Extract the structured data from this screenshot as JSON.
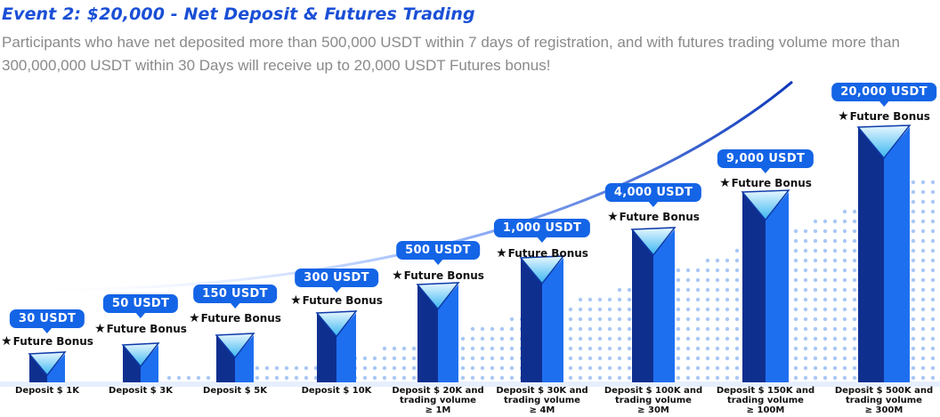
{
  "header": {
    "title": "Event 2: $20,000 - Net Deposit & Futures Trading",
    "description": "Participants who have net deposited more than 500,000 USDT within 7 days of registration, and with futures trading volume more than 300,000,000 USDT within 30 Days will receive up to 20,000 USDT Futures bonus!"
  },
  "colors": {
    "title": "#1a4fd6",
    "badge": "#1464e6",
    "bar_dark": "#0f2f8f",
    "bar_light": "#1e6ff0",
    "dots": "#a9c8f5"
  },
  "tiers": [
    {
      "reward": "30 USDT",
      "bonus": "Future Bonus",
      "label": "Deposit $ 1K"
    },
    {
      "reward": "50 USDT",
      "bonus": "Future Bonus",
      "label": "Deposit  $ 3K"
    },
    {
      "reward": "150 USDT",
      "bonus": "Future Bonus",
      "label": "Deposit  $ 5K"
    },
    {
      "reward": "300 USDT",
      "bonus": "Future Bonus",
      "label": "Deposit  $ 10K"
    },
    {
      "reward": "500 USDT",
      "bonus": "Future Bonus",
      "label": "Deposit  $ 20K and\ntrading volume\n≥ 1M"
    },
    {
      "reward": "1,000 USDT",
      "bonus": "Future Bonus",
      "label": "Deposit  $ 30K and\ntrading volume\n≥ 4M"
    },
    {
      "reward": "4,000 USDT",
      "bonus": "Future Bonus",
      "label": "Deposit $ 100K and\ntrading volume\n≥ 30M"
    },
    {
      "reward": "9,000 USDT",
      "bonus": "Future Bonus",
      "label": "Deposit $ 150K and\ntrading volume\n≥ 100M"
    },
    {
      "reward": "20,000 USDT",
      "bonus": "Future Bonus",
      "label": "Deposit $ 500K and\ntrading volume\n≥ 300M"
    }
  ],
  "icons": {
    "bonus": "star-icon"
  }
}
